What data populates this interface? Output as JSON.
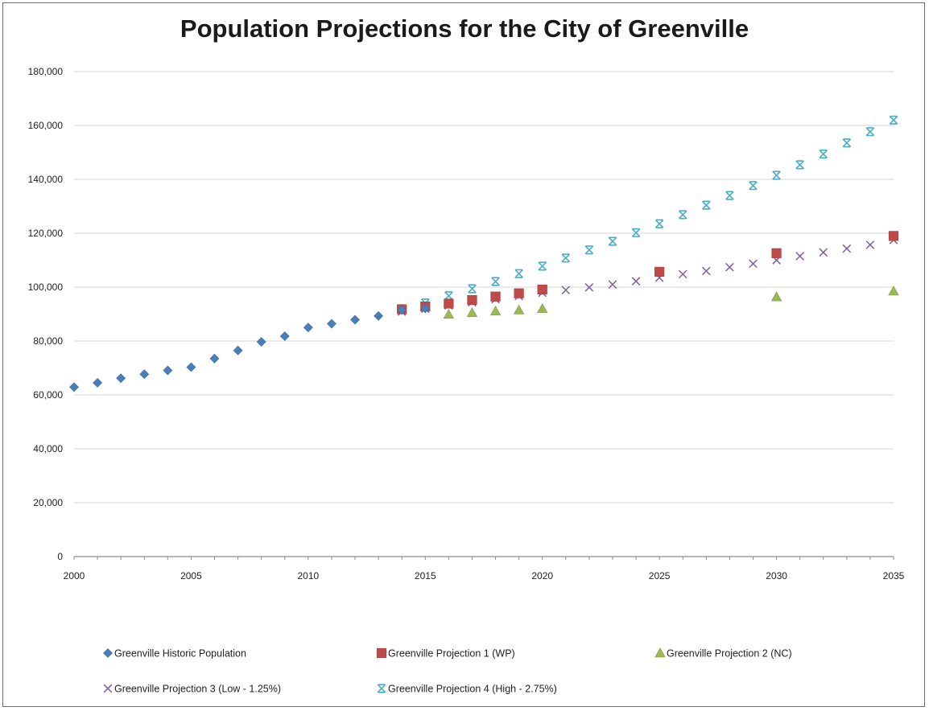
{
  "chart_data": {
    "type": "scatter",
    "title": "Population Projections for the City of Greenville",
    "xlabel": "",
    "ylabel": "",
    "xlim": [
      2000,
      2035
    ],
    "ylim": [
      0,
      180000
    ],
    "x_ticks": [
      2000,
      2005,
      2010,
      2015,
      2020,
      2025,
      2030,
      2035
    ],
    "y_ticks": [
      0,
      20000,
      40000,
      60000,
      80000,
      100000,
      120000,
      140000,
      160000,
      180000
    ],
    "x_tick_labels": [
      "2000",
      "2005",
      "2010",
      "2015",
      "2020",
      "2025",
      "2030",
      "2035"
    ],
    "y_tick_labels": [
      "0",
      "20,000",
      "40,000",
      "60,000",
      "80,000",
      "100,000",
      "120,000",
      "140,000",
      "160,000",
      "180,000"
    ],
    "grid": "horizontal",
    "legend_position": "bottom",
    "series": [
      {
        "name": "Greenville Historic Population",
        "marker": "diamond",
        "color": "#4a7ebb",
        "points": [
          [
            2000,
            62900
          ],
          [
            2001,
            64500
          ],
          [
            2002,
            66200
          ],
          [
            2003,
            67700
          ],
          [
            2004,
            69100
          ],
          [
            2005,
            70300
          ],
          [
            2006,
            73500
          ],
          [
            2007,
            76500
          ],
          [
            2008,
            79700
          ],
          [
            2009,
            81800
          ],
          [
            2010,
            85000
          ],
          [
            2011,
            86400
          ],
          [
            2012,
            87900
          ],
          [
            2013,
            89300
          ],
          [
            2014,
            91600
          ],
          [
            2015,
            92100
          ]
        ]
      },
      {
        "name": "Greenville Projection 1 (WP)",
        "marker": "square",
        "color": "#be4b48",
        "points": [
          [
            2014,
            91800
          ],
          [
            2015,
            92800
          ],
          [
            2016,
            93900
          ],
          [
            2017,
            95200
          ],
          [
            2018,
            96500
          ],
          [
            2019,
            97700
          ],
          [
            2020,
            99100
          ],
          [
            2025,
            105700
          ],
          [
            2030,
            112600
          ],
          [
            2035,
            119000
          ]
        ]
      },
      {
        "name": "Greenville Projection 2 (NC)",
        "marker": "triangle",
        "color": "#98b954",
        "points": [
          [
            2016,
            89900
          ],
          [
            2017,
            90500
          ],
          [
            2018,
            91100
          ],
          [
            2019,
            91500
          ],
          [
            2020,
            92000
          ],
          [
            2030,
            96400
          ],
          [
            2035,
            98500
          ]
        ]
      },
      {
        "name": "Greenville Projection 3 (Low - 1.25%)",
        "marker": "x",
        "color": "#7d60a0",
        "points": [
          [
            2014,
            90900
          ],
          [
            2015,
            92000
          ],
          [
            2016,
            93200
          ],
          [
            2017,
            94400
          ],
          [
            2018,
            95500
          ],
          [
            2019,
            96700
          ],
          [
            2020,
            97900
          ],
          [
            2021,
            98900
          ],
          [
            2022,
            99900
          ],
          [
            2023,
            101000
          ],
          [
            2024,
            102200
          ],
          [
            2025,
            103500
          ],
          [
            2026,
            104800
          ],
          [
            2027,
            106000
          ],
          [
            2028,
            107400
          ],
          [
            2029,
            108700
          ],
          [
            2030,
            110000
          ],
          [
            2031,
            111500
          ],
          [
            2032,
            112900
          ],
          [
            2033,
            114300
          ],
          [
            2034,
            115700
          ],
          [
            2035,
            117500
          ]
        ]
      },
      {
        "name": "Greenville Projection 4 (High - 2.75%)",
        "marker": "asterisk",
        "color": "#4bacc6",
        "points": [
          [
            2015,
            94100
          ],
          [
            2016,
            96800
          ],
          [
            2017,
            99400
          ],
          [
            2018,
            102100
          ],
          [
            2019,
            105000
          ],
          [
            2020,
            107800
          ],
          [
            2021,
            110800
          ],
          [
            2022,
            113800
          ],
          [
            2023,
            117000
          ],
          [
            2024,
            120200
          ],
          [
            2025,
            123500
          ],
          [
            2026,
            126900
          ],
          [
            2027,
            130400
          ],
          [
            2028,
            134000
          ],
          [
            2029,
            137700
          ],
          [
            2030,
            141500
          ],
          [
            2031,
            145400
          ],
          [
            2032,
            149400
          ],
          [
            2033,
            153500
          ],
          [
            2034,
            157700
          ],
          [
            2035,
            162000
          ]
        ]
      }
    ]
  }
}
